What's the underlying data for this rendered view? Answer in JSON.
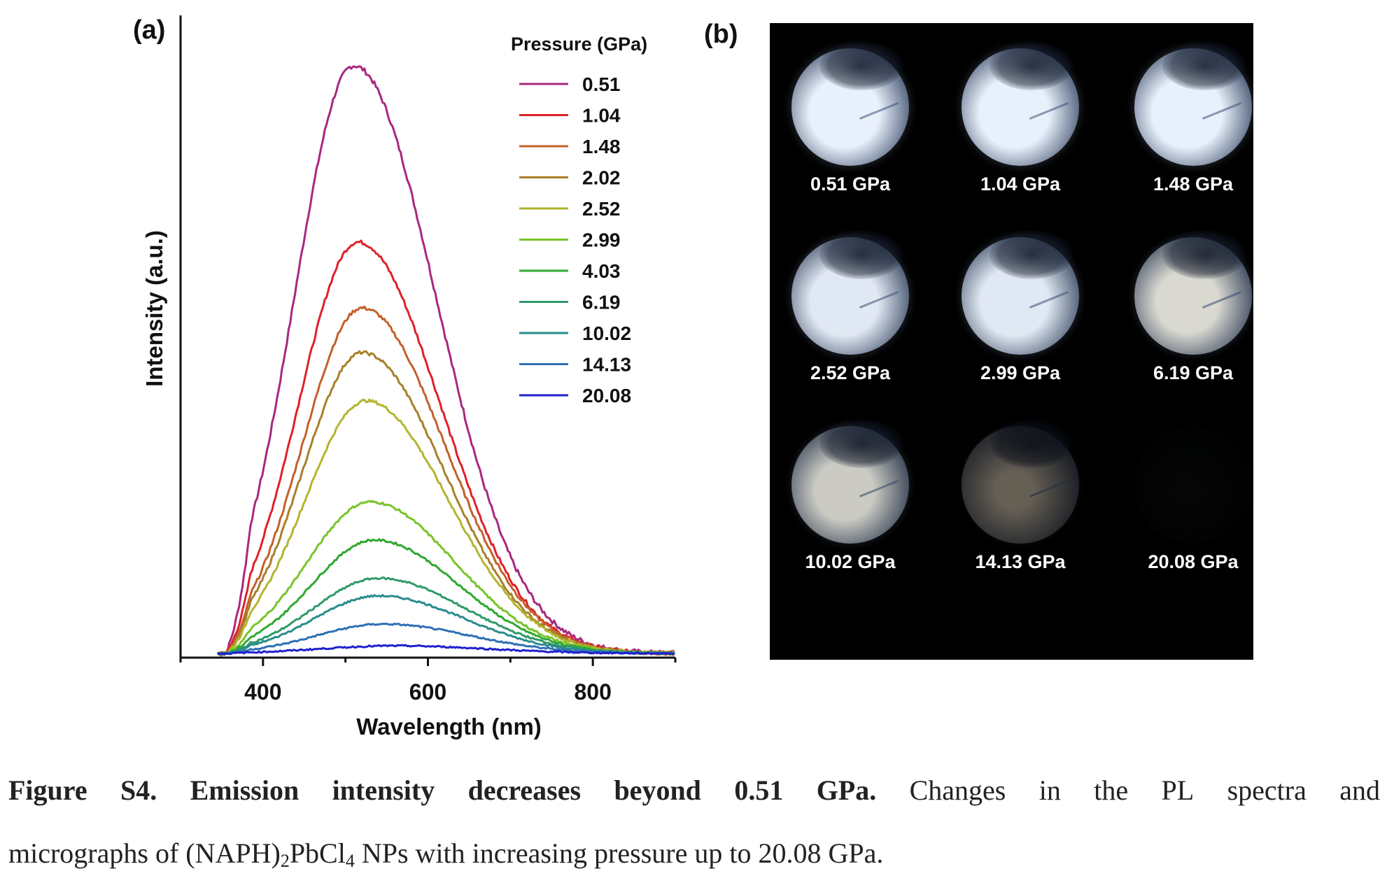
{
  "panels": {
    "a_label": "(a)",
    "b_label": "(b)"
  },
  "chart_data": {
    "type": "line",
    "title": "",
    "xlabel": "Wavelength (nm)",
    "ylabel": "Intensity (a.u.)",
    "xlim": [
      300,
      900
    ],
    "x_ticks": [
      400,
      600,
      800
    ],
    "x_tick_labels": [
      "400",
      "600",
      "800"
    ],
    "ylim": [
      0,
      1.0
    ],
    "y_ticks_shown": false,
    "grid": false,
    "legend_title": "Pressure (GPa)",
    "legend_position": "top-right",
    "series": [
      {
        "name": "0.51",
        "color": "#a8287f",
        "peak": 1.0,
        "center": 510,
        "sigma_left": 72,
        "sigma_right": 100
      },
      {
        "name": "1.04",
        "color": "#e0202a",
        "peak": 0.7,
        "center": 515,
        "sigma_left": 72,
        "sigma_right": 100
      },
      {
        "name": "1.48",
        "color": "#c4602a",
        "peak": 0.588,
        "center": 520,
        "sigma_left": 72,
        "sigma_right": 100
      },
      {
        "name": "2.02",
        "color": "#a8802a",
        "peak": 0.512,
        "center": 520,
        "sigma_left": 72,
        "sigma_right": 100
      },
      {
        "name": "2.52",
        "color": "#b2b52f",
        "peak": 0.43,
        "center": 525,
        "sigma_left": 74,
        "sigma_right": 100
      },
      {
        "name": "2.99",
        "color": "#78c42a",
        "peak": 0.258,
        "center": 530,
        "sigma_left": 76,
        "sigma_right": 102
      },
      {
        "name": "4.03",
        "color": "#2fa82f",
        "peak": 0.193,
        "center": 535,
        "sigma_left": 76,
        "sigma_right": 102
      },
      {
        "name": "6.19",
        "color": "#2f9a6a",
        "peak": 0.128,
        "center": 540,
        "sigma_left": 78,
        "sigma_right": 104
      },
      {
        "name": "10.02",
        "color": "#2a8c8c",
        "peak": 0.098,
        "center": 540,
        "sigma_left": 78,
        "sigma_right": 104
      },
      {
        "name": "14.13",
        "color": "#2f70b5",
        "peak": 0.05,
        "center": 545,
        "sigma_left": 80,
        "sigma_right": 106
      },
      {
        "name": "20.08",
        "color": "#2020d0",
        "peak": 0.013,
        "center": 560,
        "sigma_left": 90,
        "sigma_right": 110
      }
    ],
    "features": {
      "sharp_spike_x": 348,
      "onset_x": 355
    }
  },
  "micrographs": [
    {
      "label": "0.51 GPa",
      "brightness": 1.0,
      "tint": "#e8f0fb"
    },
    {
      "label": "1.04 GPa",
      "brightness": 1.0,
      "tint": "#e8f0fb"
    },
    {
      "label": "1.48 GPa",
      "brightness": 1.0,
      "tint": "#e8f0fb"
    },
    {
      "label": "2.52 GPa",
      "brightness": 0.97,
      "tint": "#e8f0fb"
    },
    {
      "label": "2.99 GPa",
      "brightness": 0.97,
      "tint": "#e8f0fb"
    },
    {
      "label": "6.19 GPa",
      "brightness": 0.9,
      "tint": "#f1f1e8"
    },
    {
      "label": "10.02 GPa",
      "brightness": 0.85,
      "tint": "#efefe6"
    },
    {
      "label": "14.13 GPa",
      "brightness": 0.55,
      "tint": "#b8ad9a"
    },
    {
      "label": "20.08 GPa",
      "brightness": 0.08,
      "tint": "#263326"
    }
  ],
  "caption": {
    "bold": "Figure S4. Emission intensity decreases beyond 0.51 GPa.",
    "line1_rest": "Changes in the PL spectra and",
    "line2_prefix": "micrographs of (NAPH)",
    "sub1": "2",
    "mid": "PbCl",
    "sub2": "4",
    "line2_suffix": " NPs with increasing pressure up to 20.08 GPa."
  }
}
